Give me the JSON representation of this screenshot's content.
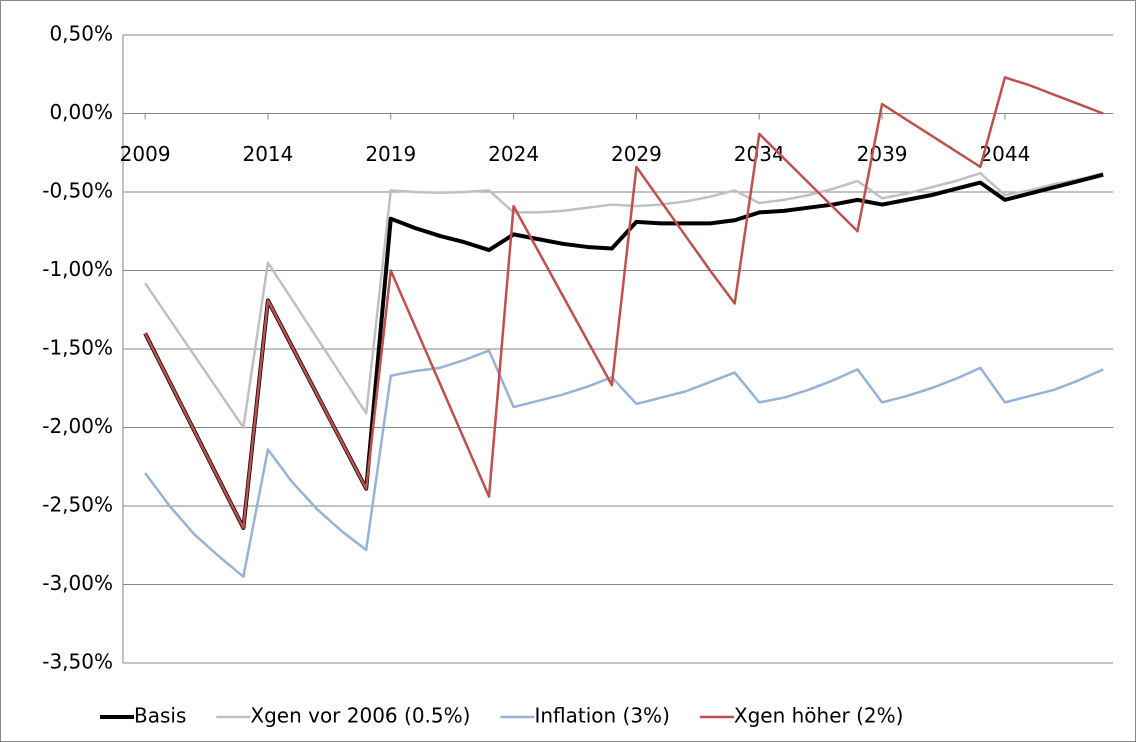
{
  "chart_data": {
    "type": "line",
    "x": [
      2009,
      2010,
      2011,
      2012,
      2013,
      2014,
      2015,
      2016,
      2017,
      2018,
      2019,
      2020,
      2021,
      2022,
      2023,
      2024,
      2025,
      2026,
      2027,
      2028,
      2029,
      2030,
      2031,
      2032,
      2033,
      2034,
      2035,
      2036,
      2037,
      2038,
      2039,
      2040,
      2041,
      2042,
      2043,
      2044,
      2045,
      2046,
      2047,
      2048
    ],
    "xlim": [
      2008.1,
      2048.4
    ],
    "xticks": [
      2009,
      2014,
      2019,
      2024,
      2029,
      2034,
      2039,
      2044
    ],
    "ylim": [
      -3.5,
      0.5
    ],
    "yticks": [
      {
        "value": -3.5,
        "label": "-3,50%"
      },
      {
        "value": -3,
        "label": "-3,00%"
      },
      {
        "value": -2.5,
        "label": "-2,50%"
      },
      {
        "value": -2,
        "label": "-2,00%"
      },
      {
        "value": -1.5,
        "label": "-1,50%"
      },
      {
        "value": -1,
        "label": "-1,00%"
      },
      {
        "value": -0.5,
        "label": "-0,50%"
      },
      {
        "value": 0,
        "label": "0,00%"
      },
      {
        "value": 0.5,
        "label": "0,50%"
      }
    ],
    "grid": true,
    "legend": "bottom",
    "series": [
      {
        "name": "Basis",
        "color": "#000000",
        "values": [
          -1.4,
          -1.71,
          -2.02,
          -2.33,
          -2.64,
          -1.19,
          -1.49,
          -1.79,
          -2.09,
          -2.39,
          -0.67,
          -0.73,
          -0.78,
          -0.82,
          -0.87,
          -0.77,
          -0.8,
          -0.83,
          -0.85,
          -0.86,
          -0.69,
          -0.7,
          -0.7,
          -0.7,
          -0.68,
          -0.63,
          -0.62,
          -0.6,
          -0.58,
          -0.55,
          -0.58,
          -0.55,
          -0.52,
          -0.48,
          -0.44,
          -0.55,
          -0.51,
          -0.47,
          -0.43,
          -0.39
        ]
      },
      {
        "name": "Xgen vor 2006 (0.5%)",
        "color": "#c0c0c0",
        "values": [
          -1.08,
          -1.31,
          -1.54,
          -1.77,
          -2.0,
          -0.95,
          -1.19,
          -1.43,
          -1.67,
          -1.91,
          -0.49,
          -0.5,
          -0.505,
          -0.5,
          -0.49,
          -0.63,
          -0.63,
          -0.62,
          -0.6,
          -0.58,
          -0.59,
          -0.58,
          -0.56,
          -0.53,
          -0.49,
          -0.57,
          -0.55,
          -0.52,
          -0.48,
          -0.43,
          -0.54,
          -0.51,
          -0.47,
          -0.43,
          -0.38,
          -0.52,
          -0.49,
          -0.45,
          -0.42,
          -0.38
        ]
      },
      {
        "name": "Inflation (3%)",
        "color": "#95b3d7",
        "values": [
          -2.29,
          -2.5,
          -2.68,
          -2.82,
          -2.95,
          -2.14,
          -2.35,
          -2.52,
          -2.66,
          -2.78,
          -1.67,
          -1.64,
          -1.62,
          -1.57,
          -1.51,
          -1.87,
          -1.83,
          -1.79,
          -1.74,
          -1.68,
          -1.85,
          -1.81,
          -1.77,
          -1.71,
          -1.65,
          -1.84,
          -1.81,
          -1.76,
          -1.7,
          -1.63,
          -1.84,
          -1.8,
          -1.75,
          -1.69,
          -1.62,
          -1.84,
          -1.8,
          -1.76,
          -1.7,
          -1.63
        ]
      },
      {
        "name": "Xgen höher (2%)",
        "color": "#c0504d",
        "values": [
          -1.4,
          -1.71,
          -2.02,
          -2.33,
          -2.64,
          -1.19,
          -1.49,
          -1.79,
          -2.09,
          -2.39,
          -1.0,
          -1.36,
          -1.72,
          -2.08,
          -2.44,
          -0.59,
          -0.875,
          -1.16,
          -1.445,
          -1.73,
          -0.34,
          -0.56,
          -0.78,
          -1.0,
          -1.21,
          -0.13,
          -0.285,
          -0.44,
          -0.595,
          -0.75,
          0.06,
          -0.04,
          -0.14,
          -0.24,
          -0.34,
          0.23,
          0.18,
          0.12,
          0.06,
          0.0
        ]
      }
    ]
  }
}
